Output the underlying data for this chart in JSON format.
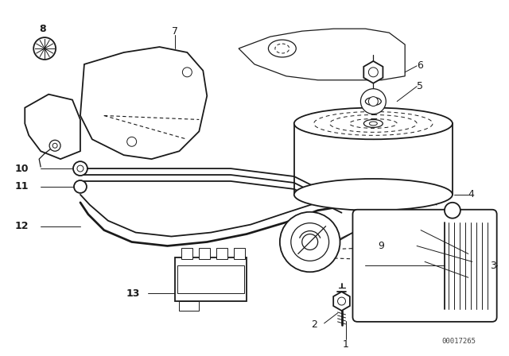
{
  "background_color": "#ffffff",
  "line_color": "#1a1a1a",
  "diagram_id": "00017265",
  "fig_width": 6.4,
  "fig_height": 4.48,
  "dpi": 100
}
